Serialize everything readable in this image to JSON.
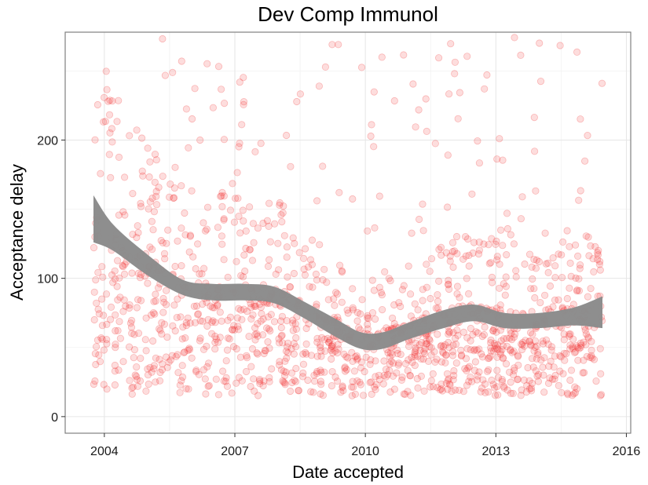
{
  "chart_data": {
    "type": "scatter",
    "title": "Dev Comp Immunol",
    "xlabel": "Date accepted",
    "ylabel": "Acceptance delay",
    "xlim": [
      2003.1,
      2016.1
    ],
    "ylim": [
      -12,
      278
    ],
    "x_ticks": [
      2004,
      2007,
      2010,
      2013,
      2016
    ],
    "x_tick_labels": [
      "2004",
      "2007",
      "2010",
      "2013",
      "2016"
    ],
    "y_ticks": [
      0,
      100,
      200
    ],
    "y_tick_labels": [
      "0",
      "100",
      "200"
    ],
    "grid": true,
    "legend": "none",
    "colors": {
      "points": "#f02a2a",
      "smooth_band": "#8c8c8c",
      "grid_major": "#e6e6e6",
      "grid_minor": "#f2f2f2",
      "panel_border": "#808080"
    },
    "point_opacity": 0.16,
    "n_points": 1500,
    "trend": [
      {
        "x": 2003.75,
        "lo": 126,
        "hi": 160
      },
      {
        "x": 2004.2,
        "lo": 120,
        "hi": 139
      },
      {
        "x": 2005.0,
        "lo": 102,
        "hi": 117
      },
      {
        "x": 2005.8,
        "lo": 88,
        "hi": 99
      },
      {
        "x": 2006.5,
        "lo": 84,
        "hi": 96
      },
      {
        "x": 2007.2,
        "lo": 84,
        "hi": 96
      },
      {
        "x": 2007.9,
        "lo": 82,
        "hi": 94
      },
      {
        "x": 2008.6,
        "lo": 71,
        "hi": 83
      },
      {
        "x": 2009.3,
        "lo": 58,
        "hi": 71
      },
      {
        "x": 2009.9,
        "lo": 49,
        "hi": 61
      },
      {
        "x": 2010.4,
        "lo": 49,
        "hi": 61
      },
      {
        "x": 2011.0,
        "lo": 56,
        "hi": 68
      },
      {
        "x": 2011.8,
        "lo": 64,
        "hi": 77
      },
      {
        "x": 2012.5,
        "lo": 69,
        "hi": 81
      },
      {
        "x": 2013.2,
        "lo": 64,
        "hi": 75
      },
      {
        "x": 2014.0,
        "lo": 64,
        "hi": 75
      },
      {
        "x": 2014.8,
        "lo": 66,
        "hi": 79
      },
      {
        "x": 2015.45,
        "lo": 64,
        "hi": 87
      }
    ]
  }
}
